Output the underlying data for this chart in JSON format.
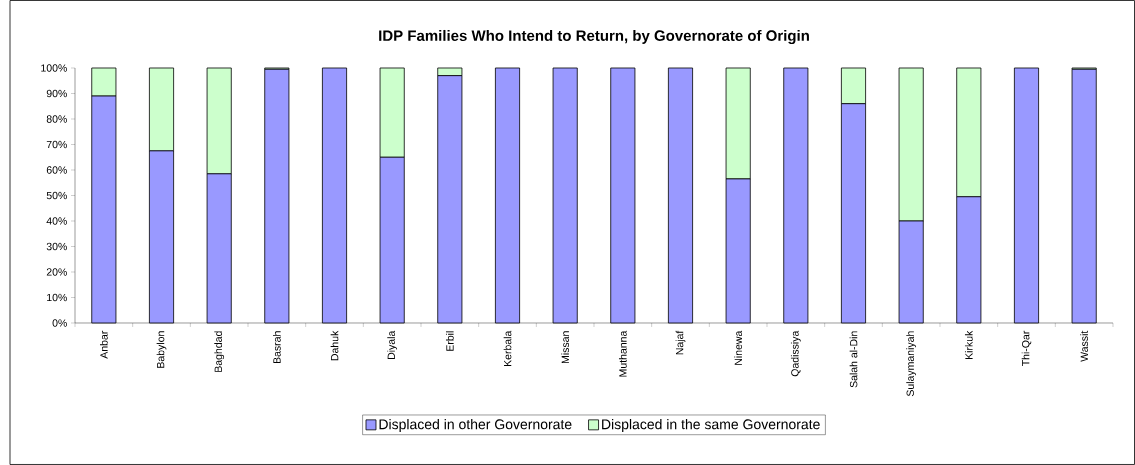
{
  "chart_data": {
    "type": "bar",
    "title": "IDP Families Who Intend to Return, by Governorate of Origin",
    "categories": [
      "Anbar",
      "Babylon",
      "Baghdad",
      "Basrah",
      "Dahuk",
      "Diyala",
      "Erbil",
      "Kerbala",
      "Missan",
      "Muthanna",
      "Najaf",
      "Ninewa",
      "Qadissiya",
      "Salah al-Din",
      "Sulaymaniyah",
      "Kirkuk",
      "Thi-Qar",
      "Wassit"
    ],
    "stacked": true,
    "series": [
      {
        "name": "Displaced in other Governorate",
        "color": "#9999ff",
        "values": [
          89,
          67.5,
          58.5,
          99.5,
          100,
          65,
          97,
          100,
          100,
          100,
          100,
          56.5,
          100,
          86,
          40,
          49.5,
          100,
          99.5
        ]
      },
      {
        "name": "Displaced in the same Governorate",
        "color": "#ccffcc",
        "values": [
          11,
          32.5,
          41.5,
          0.5,
          0,
          35,
          3,
          0,
          0,
          0,
          0,
          43.5,
          0,
          14,
          60,
          50.5,
          0,
          0.5
        ]
      }
    ],
    "ylim": [
      0,
      100
    ],
    "yticks": [
      {
        "value": 0,
        "label": "0%"
      },
      {
        "value": 10,
        "label": "10%"
      },
      {
        "value": 20,
        "label": "20%"
      },
      {
        "value": 30,
        "label": "30%"
      },
      {
        "value": 40,
        "label": "40%"
      },
      {
        "value": 50,
        "label": "50%"
      },
      {
        "value": 60,
        "label": "60%"
      },
      {
        "value": 70,
        "label": "70%"
      },
      {
        "value": 80,
        "label": "80%"
      },
      {
        "value": 90,
        "label": "90%"
      },
      {
        "value": 100,
        "label": "100%"
      }
    ],
    "grid": false,
    "legend": "bottom"
  }
}
